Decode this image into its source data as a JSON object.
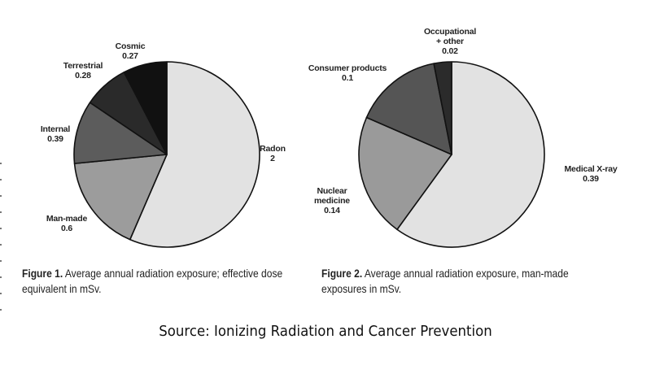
{
  "chart_data": [
    {
      "type": "pie",
      "id": "figure-1",
      "title": "Average annual radiation exposure; effective dose equivalent in mSv.",
      "unit": "mSv",
      "start": "12 o'clock",
      "direction": "clockwise",
      "slices": [
        {
          "label": "Radon",
          "value": 2,
          "value_text": "2",
          "color": "#e2e2e2"
        },
        {
          "label": "Man-made",
          "value": 0.6,
          "value_text": "0.6",
          "color": "#9c9c9c"
        },
        {
          "label": "Internal",
          "value": 0.39,
          "value_text": "0.39",
          "color": "#5c5c5c"
        },
        {
          "label": "Terrestrial",
          "value": 0.28,
          "value_text": "0.28",
          "color": "#2a2a2a"
        },
        {
          "label": "Cosmic",
          "value": 0.27,
          "value_text": "0.27",
          "color": "#111111"
        }
      ]
    },
    {
      "type": "pie",
      "id": "figure-2",
      "title": "Average annual radiation exposure, man-made exposures in mSv.",
      "unit": "mSv",
      "start": "12 o'clock",
      "direction": "clockwise",
      "slices": [
        {
          "label": "Medical X-ray",
          "value": 0.39,
          "value_text": "0.39",
          "color": "#e2e2e2"
        },
        {
          "label": "Nuclear medicine",
          "value": 0.14,
          "value_text": "0.14",
          "color": "#9a9a9a"
        },
        {
          "label": "Consumer products",
          "value": 0.1,
          "value_text": "0.1",
          "color": "#555555"
        },
        {
          "label": "Occupational + other",
          "value": 0.02,
          "value_text": "0.02",
          "color": "#2b2b2b"
        }
      ]
    }
  ],
  "captions": {
    "figure1": {
      "prefix": "Figure 1.",
      "text": " Average annual radiation exposure; effective dose equivalent in mSv."
    },
    "figure2": {
      "prefix": "Figure 2.",
      "text": " Average annual radiation exposure, man-made exposures in mSv."
    }
  },
  "source": "Source: Ionizing Radiation and Cancer Prevention"
}
